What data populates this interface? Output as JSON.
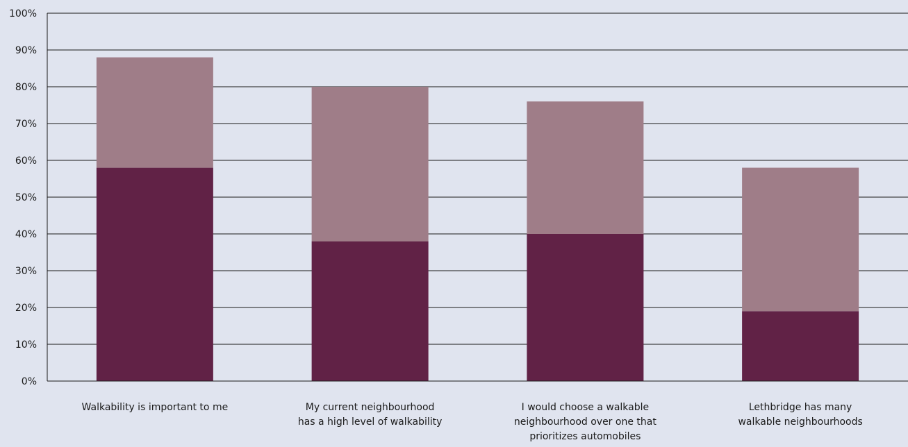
{
  "colors": {
    "background": "#e0e4ef",
    "gridline": "#1a1a1a",
    "series_bottom": "#612246",
    "series_top": "#9f7d88"
  },
  "chart_data": {
    "type": "bar",
    "stacked": true,
    "title": "",
    "xlabel": "",
    "ylabel": "",
    "ylim": [
      0,
      100
    ],
    "y_ticks": [
      "0%",
      "10%",
      "20%",
      "30%",
      "40%",
      "50%",
      "60%",
      "70%",
      "80%",
      "90%",
      "100%"
    ],
    "grid": true,
    "legend": "none",
    "categories": [
      [
        "Walkability is important to me"
      ],
      [
        "My current neighbourhood",
        "has a high level of walkability"
      ],
      [
        "I would choose a walkable",
        "neighbourhood over one that",
        "prioritizes automobiles"
      ],
      [
        "Lethbridge has many",
        "walkable neighbourhoods"
      ]
    ],
    "series": [
      {
        "values": [
          58,
          38,
          40,
          19
        ]
      },
      {
        "values": [
          30,
          42,
          36,
          39
        ]
      }
    ]
  }
}
